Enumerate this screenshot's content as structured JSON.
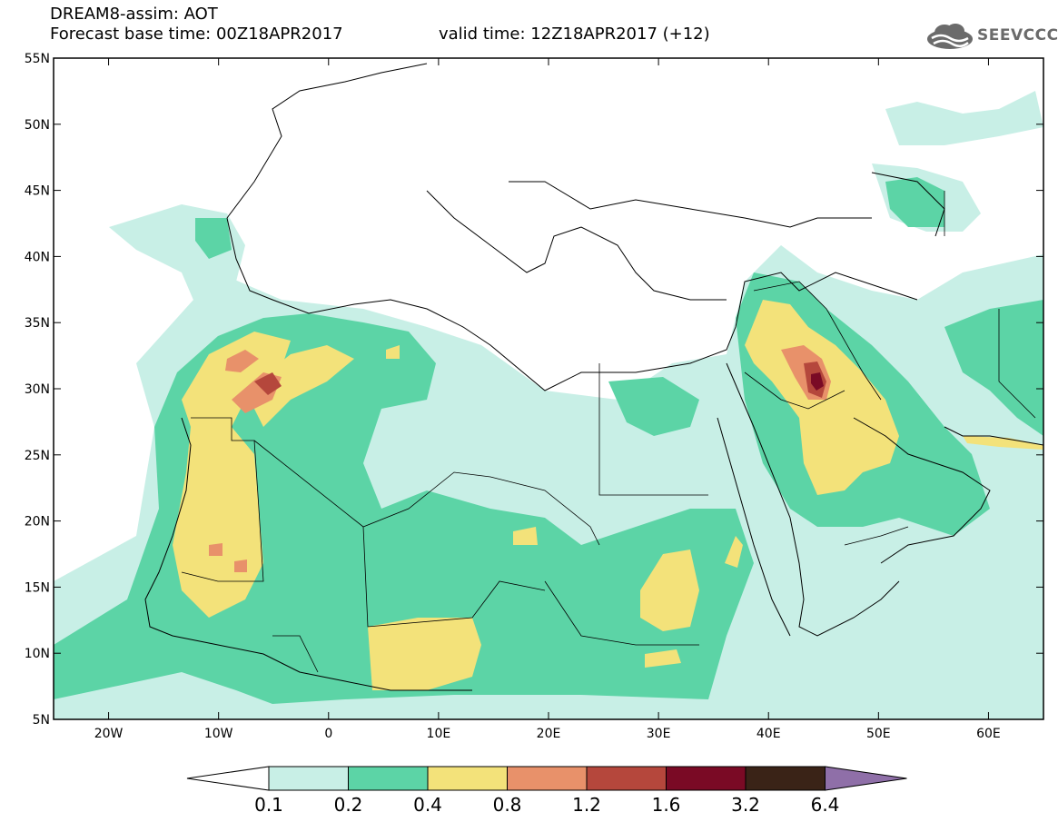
{
  "header": {
    "title": "DREAM8-assim: AOT",
    "base_time": "Forecast base time: 00Z18APR2017",
    "valid_time": "valid time: 12Z18APR2017 (+12)",
    "logo_text": "SEEVCCC"
  },
  "map": {
    "projection": "equirectangular",
    "extent": {
      "lon": [
        -25,
        65
      ],
      "lat": [
        5,
        55
      ]
    },
    "lat_labels": [
      "5N",
      "10N",
      "15N",
      "20N",
      "25N",
      "30N",
      "35N",
      "40N",
      "45N",
      "50N",
      "55N"
    ],
    "lon_labels": [
      "20W",
      "10W",
      "0",
      "10E",
      "20E",
      "30E",
      "40E",
      "50E",
      "60E"
    ]
  },
  "colorbar": {
    "levels": [
      "0.1",
      "0.2",
      "0.4",
      "0.8",
      "1.2",
      "1.6",
      "3.2",
      "6.4"
    ],
    "colors": [
      "#ffffff",
      "#c8efe6",
      "#5cd4a6",
      "#f3e27a",
      "#e8916a",
      "#b5473c",
      "#7a0a25",
      "#3a2317",
      "#8f6fa8"
    ]
  }
}
